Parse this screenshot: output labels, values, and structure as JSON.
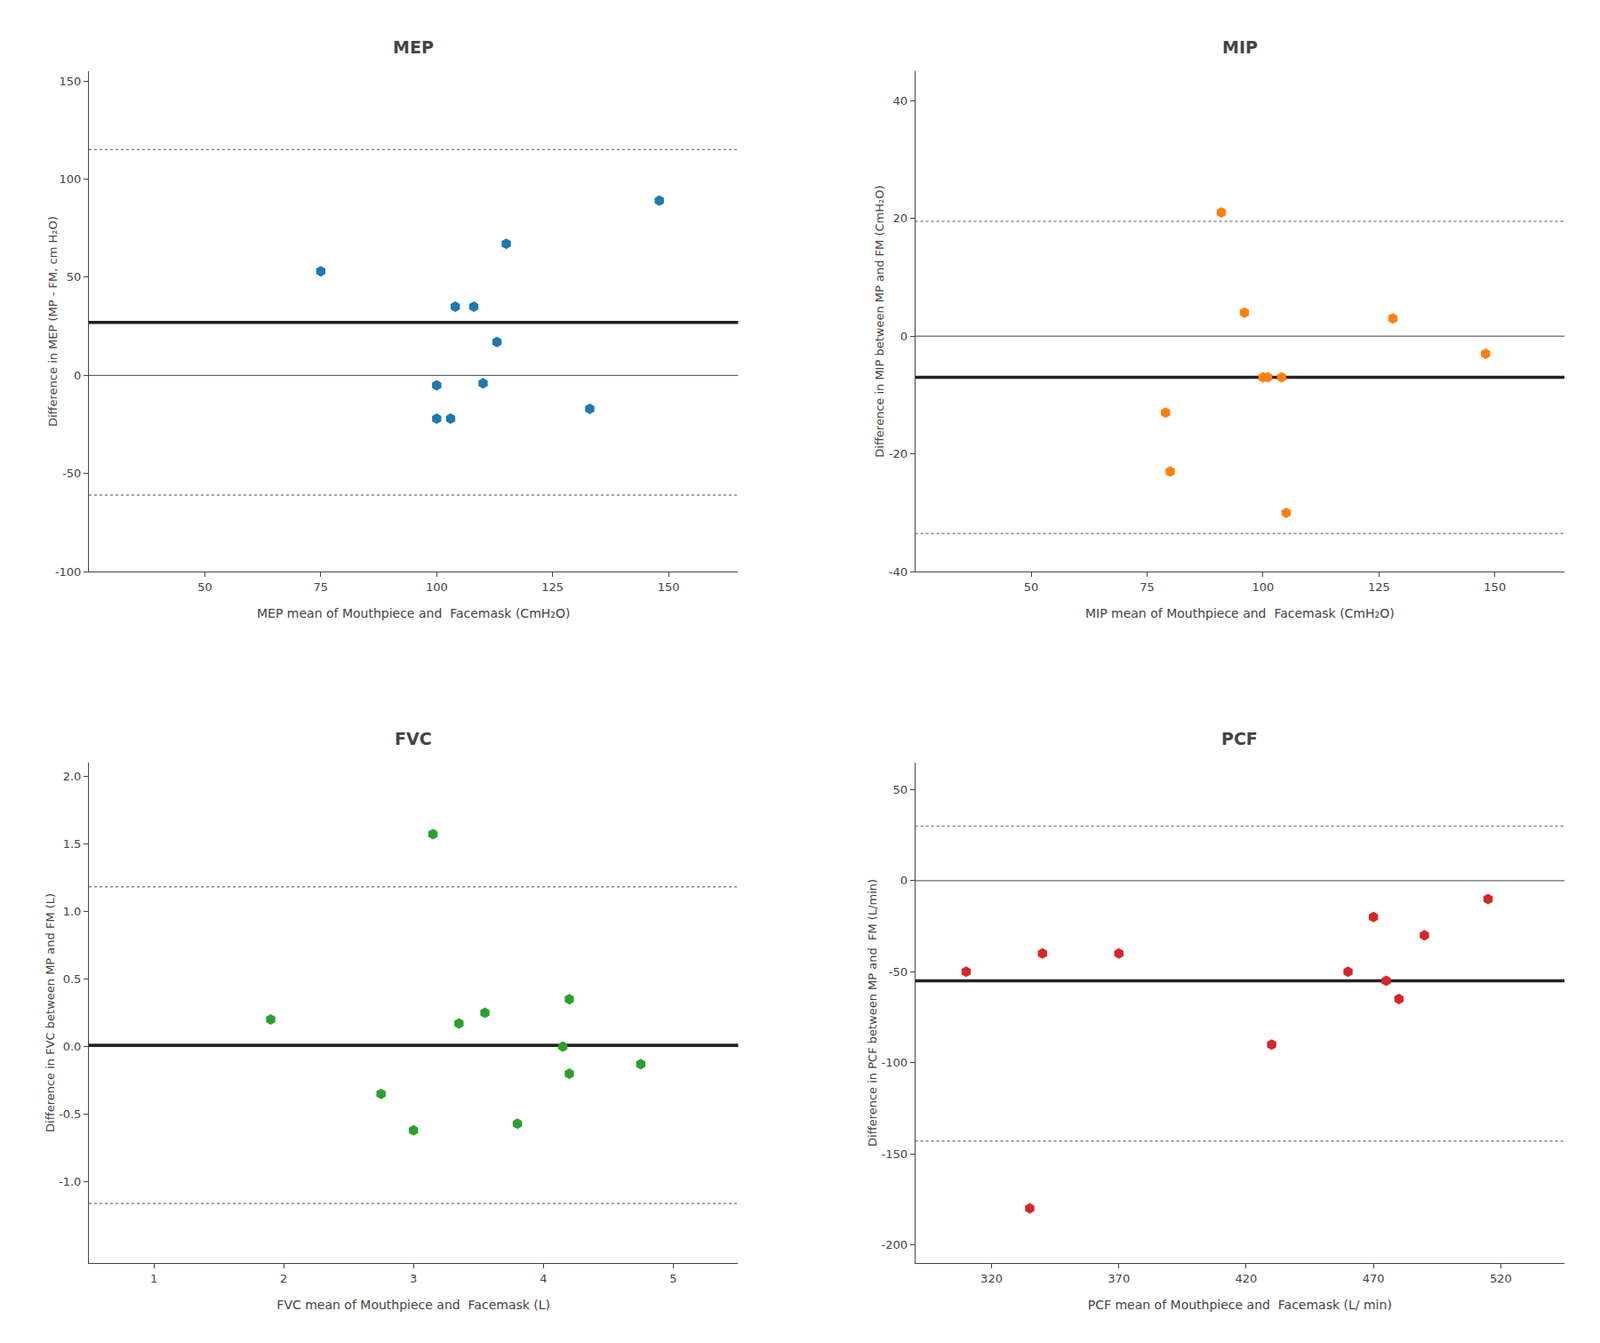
{
  "chart_data": [
    {
      "type": "scatter",
      "title": "MEP",
      "xlabel": "MEP mean of Mouthpiece and  Facemask (CmH₂O)",
      "ylabel": "Difference in MEP (MP - FM, cm H₂O)",
      "x": [
        75,
        100,
        100,
        103,
        104,
        108,
        110,
        113,
        115,
        133,
        148
      ],
      "values": [
        53,
        -5,
        -22,
        -22,
        35,
        35,
        -4,
        17,
        67,
        -17,
        89
      ],
      "mean": 27,
      "upper_loa": 115,
      "lower_loa": -61,
      "zero_line": 0,
      "xlim": [
        25,
        165
      ],
      "ylim": [
        -100,
        155
      ],
      "xticks": [
        50,
        75,
        100,
        125,
        150
      ],
      "yticks": [
        -100,
        -50,
        0,
        50,
        100,
        150
      ],
      "marker": "hexagon",
      "grid": false
    },
    {
      "type": "scatter",
      "title": "MIP",
      "xlabel": "MIP mean of Mouthpiece and  Facemask (CmH₂O)",
      "ylabel": "Difference in MIP between MP and FM (CmH₂O)",
      "x": [
        79,
        80,
        91,
        96,
        100,
        101,
        104,
        105,
        128,
        148
      ],
      "values": [
        -13,
        -23,
        21,
        4,
        -7,
        -7,
        -7,
        -30,
        3,
        -3
      ],
      "mean": -7,
      "upper_loa": 19.5,
      "lower_loa": -33.5,
      "zero_line": 0,
      "xlim": [
        25,
        165
      ],
      "ylim": [
        -40,
        45
      ],
      "xticks": [
        50,
        75,
        100,
        125,
        150
      ],
      "yticks": [
        -40,
        -20,
        0,
        20,
        40
      ],
      "marker": "hexagon",
      "grid": false
    },
    {
      "type": "scatter",
      "title": "FVC",
      "xlabel": "FVC mean of Mouthpiece and  Facemask (L)",
      "ylabel": "Difference in FVC between MP and FM (L)",
      "x": [
        1.9,
        2.75,
        3.0,
        3.15,
        3.35,
        3.55,
        3.8,
        4.15,
        4.2,
        4.2,
        4.75
      ],
      "values": [
        0.2,
        -0.35,
        -0.62,
        1.57,
        0.17,
        0.25,
        -0.57,
        0.0,
        0.35,
        -0.2,
        -0.13
      ],
      "mean": 0.01,
      "upper_loa": 1.18,
      "lower_loa": -1.16,
      "zero_line": 0,
      "xlim": [
        0.5,
        5.5
      ],
      "ylim": [
        -1.6,
        2.1
      ],
      "xticks": [
        1,
        2,
        3,
        4,
        5
      ],
      "yticks": [
        {
          "value": -1.0,
          "label": "-1.0"
        },
        -0.5,
        {
          "value": 0.0,
          "label": "0.0"
        },
        0.5,
        {
          "value": 1.0,
          "label": "1.0"
        },
        1.5,
        {
          "value": 2.0,
          "label": "2.0"
        }
      ],
      "marker": "hexagon",
      "grid": false
    },
    {
      "type": "scatter",
      "title": "PCF",
      "xlabel": "PCF mean of Mouthpiece and  Facemask (L/ min)",
      "ylabel": "Difference in PCF between MP and  FM (L/min)",
      "x": [
        310,
        335,
        340,
        370,
        430,
        460,
        470,
        475,
        480,
        490,
        515
      ],
      "values": [
        -50,
        -180,
        -40,
        -40,
        -90,
        -50,
        -20,
        -55,
        -65,
        -30,
        -10
      ],
      "mean": -55,
      "upper_loa": 30,
      "lower_loa": -143,
      "zero_line": 0,
      "xlim": [
        290,
        545
      ],
      "ylim": [
        -210,
        65
      ],
      "xticks": [
        320,
        370,
        420,
        470,
        520
      ],
      "yticks": [
        -200,
        -150,
        -100,
        -50,
        0,
        50
      ],
      "marker": "hexagon",
      "grid": false
    }
  ]
}
